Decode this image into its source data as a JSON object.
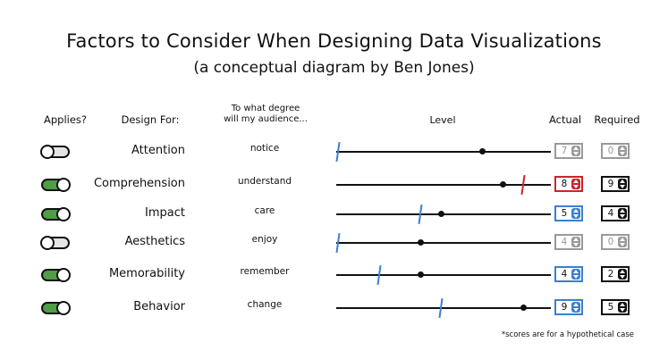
{
  "title": "Factors to Consider When Designing Data Visualizations",
  "subtitle": "(a conceptual diagram by Ben Jones)",
  "headers": {
    "applies": "Applies?",
    "design_for": "Design For:",
    "degree_line1": "To what degree",
    "degree_line2": "will my audience...",
    "level": "Level",
    "actual": "Actual",
    "required": "Required"
  },
  "colors": {
    "toggle_on": "#4f9d46",
    "toggle_off": "#e4e4e4",
    "met": "#3b7fd1",
    "unmet": "#c9252c",
    "inactive": "#9a9a9a"
  },
  "scale_max": 10,
  "rows": [
    {
      "applies": false,
      "factor": "Attention",
      "verb": "notice",
      "actual": "7",
      "required": "0",
      "status": "inactive"
    },
    {
      "applies": true,
      "factor": "Comprehension",
      "verb": "understand",
      "actual": "8",
      "required": "9",
      "status": "unmet"
    },
    {
      "applies": true,
      "factor": "Impact",
      "verb": "care",
      "actual": "5",
      "required": "4",
      "status": "met"
    },
    {
      "applies": false,
      "factor": "Aesthetics",
      "verb": "enjoy",
      "actual": "4",
      "required": "0",
      "status": "inactive"
    },
    {
      "applies": true,
      "factor": "Memorability",
      "verb": "remember",
      "actual": "4",
      "required": "2",
      "status": "met"
    },
    {
      "applies": true,
      "factor": "Behavior",
      "verb": "change",
      "actual": "9",
      "required": "5",
      "status": "met"
    }
  ],
  "footnote": "*scores are for a hypothetical case"
}
